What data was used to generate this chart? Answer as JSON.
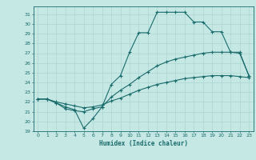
{
  "xlabel": "Humidex (Indice chaleur)",
  "xlim": [
    -0.5,
    23.5
  ],
  "ylim": [
    19,
    31.8
  ],
  "yticks": [
    19,
    20,
    21,
    22,
    23,
    24,
    25,
    26,
    27,
    28,
    29,
    30,
    31
  ],
  "xticks": [
    0,
    1,
    2,
    3,
    4,
    5,
    6,
    7,
    8,
    9,
    10,
    11,
    12,
    13,
    14,
    15,
    16,
    17,
    18,
    19,
    20,
    21,
    22,
    23
  ],
  "bg_color": "#c5e8e5",
  "grid_color": "#b0d8d4",
  "line_color": "#1a6b6b",
  "line1_x": [
    0,
    1,
    2,
    3,
    4,
    5,
    6,
    7,
    8,
    9,
    10,
    11,
    12,
    13,
    14,
    15,
    16,
    17,
    18,
    19,
    20,
    21,
    22,
    23
  ],
  "line1_y": [
    22.3,
    22.3,
    21.9,
    21.5,
    21.2,
    19.3,
    20.3,
    21.5,
    23.8,
    24.7,
    27.1,
    29.1,
    29.1,
    31.2,
    31.2,
    31.2,
    31.2,
    30.2,
    30.2,
    29.2,
    29.2,
    27.1,
    27.1,
    24.7
  ],
  "line2_x": [
    0,
    1,
    2,
    3,
    4,
    5,
    6,
    7,
    8,
    9,
    10,
    11,
    12,
    13,
    14,
    15,
    16,
    17,
    18,
    19,
    20,
    21,
    22,
    23
  ],
  "line2_y": [
    22.3,
    22.3,
    21.9,
    21.3,
    21.1,
    21.0,
    21.3,
    21.5,
    22.5,
    23.2,
    23.8,
    24.5,
    25.1,
    25.7,
    26.1,
    26.4,
    26.6,
    26.8,
    27.0,
    27.1,
    27.1,
    27.1,
    27.0,
    24.7
  ],
  "line3_x": [
    0,
    1,
    2,
    3,
    4,
    5,
    6,
    7,
    8,
    9,
    10,
    11,
    12,
    13,
    14,
    15,
    16,
    17,
    18,
    19,
    20,
    21,
    22,
    23
  ],
  "line3_y": [
    22.3,
    22.3,
    22.0,
    21.8,
    21.6,
    21.4,
    21.5,
    21.7,
    22.1,
    22.4,
    22.8,
    23.2,
    23.5,
    23.8,
    24.0,
    24.2,
    24.4,
    24.5,
    24.6,
    24.7,
    24.7,
    24.7,
    24.6,
    24.5
  ]
}
